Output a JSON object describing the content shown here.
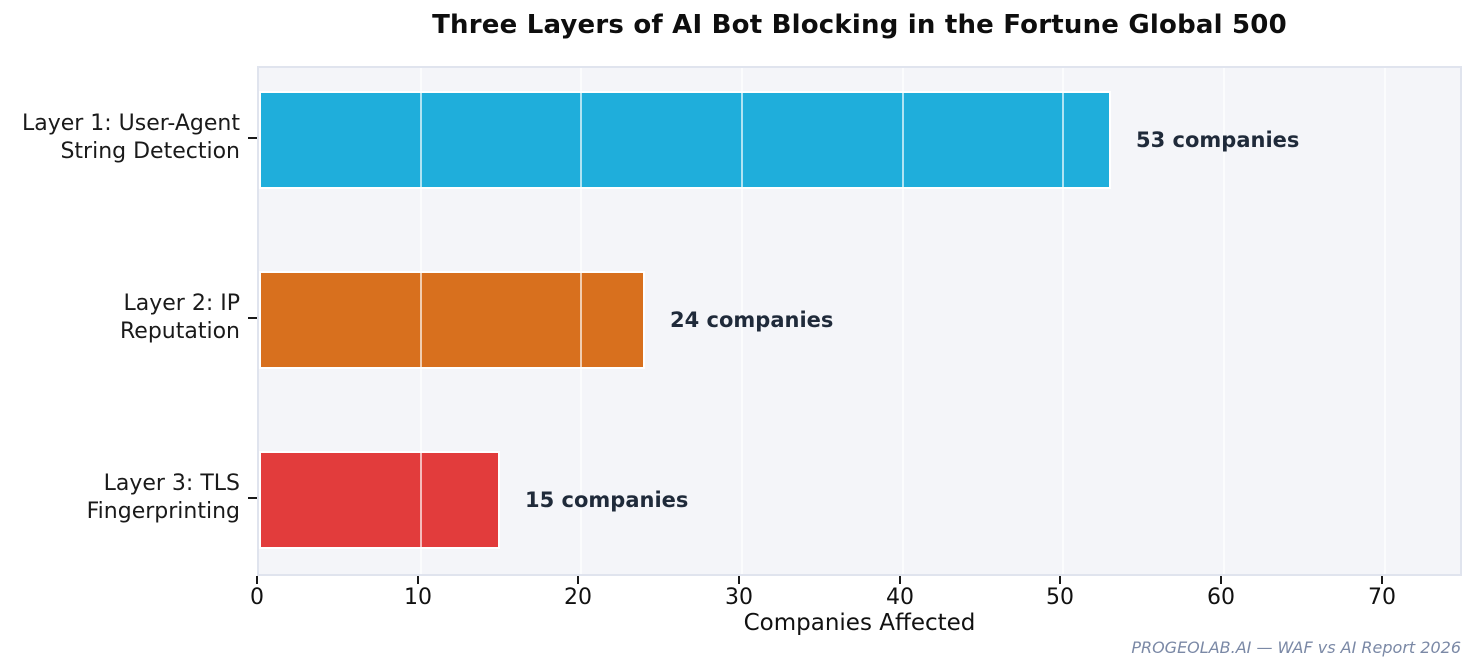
{
  "chart_data": {
    "type": "bar",
    "orientation": "horizontal",
    "title": "Three Layers of AI Bot Blocking in the Fortune Global 500",
    "categories": [
      "Layer 1: User-Agent String Detection",
      "Layer 2: IP Reputation",
      "Layer 3: TLS Fingerprinting"
    ],
    "category_lines": [
      [
        "Layer 1: User-Agent",
        "String Detection"
      ],
      [
        "Layer 2: IP",
        "Reputation"
      ],
      [
        "Layer 3: TLS",
        "Fingerprinting"
      ]
    ],
    "values": [
      53,
      24,
      15
    ],
    "value_labels": [
      "53 companies",
      "24 companies",
      "15 companies"
    ],
    "bar_colors": [
      "#1faedb",
      "#d8701e",
      "#e23c3c"
    ],
    "xlabel": "Companies Affected",
    "ylabel": "",
    "xlim": [
      0,
      75
    ],
    "xticks": [
      0,
      10,
      20,
      30,
      40,
      50,
      60,
      70
    ],
    "grid": true,
    "legend": false
  },
  "footer": {
    "source_note": "PROGEOLAB.AI — WAF vs AI Report 2026"
  },
  "colors": {
    "plot_background": "#f4f5f9",
    "plot_border": "#e0e4ee",
    "gridline": "rgba(255,255,255,0.65)",
    "value_label_text": "#1f2a3a",
    "footer_text": "#7b89a6",
    "bar_cyan": "#1faedb",
    "bar_orange": "#d8701e",
    "bar_red": "#e23c3c"
  }
}
